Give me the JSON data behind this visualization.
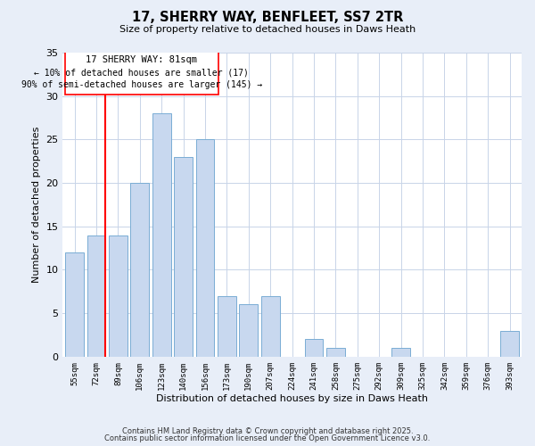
{
  "title": "17, SHERRY WAY, BENFLEET, SS7 2TR",
  "subtitle": "Size of property relative to detached houses in Daws Heath",
  "xlabel": "Distribution of detached houses by size in Daws Heath",
  "ylabel": "Number of detached properties",
  "bar_labels": [
    "55sqm",
    "72sqm",
    "89sqm",
    "106sqm",
    "123sqm",
    "140sqm",
    "156sqm",
    "173sqm",
    "190sqm",
    "207sqm",
    "224sqm",
    "241sqm",
    "258sqm",
    "275sqm",
    "292sqm",
    "309sqm",
    "325sqm",
    "342sqm",
    "359sqm",
    "376sqm",
    "393sqm"
  ],
  "bar_values": [
    12,
    14,
    14,
    20,
    28,
    23,
    25,
    7,
    6,
    7,
    0,
    2,
    1,
    0,
    0,
    1,
    0,
    0,
    0,
    0,
    3
  ],
  "bar_color": "#c8d8ef",
  "bar_edge_color": "#7aadd4",
  "ylim": [
    0,
    35
  ],
  "yticks": [
    0,
    5,
    10,
    15,
    20,
    25,
    30,
    35
  ],
  "ref_line_label": "17 SHERRY WAY: 81sqm",
  "annotation_line1": "← 10% of detached houses are smaller (17)",
  "annotation_line2": "90% of semi-detached houses are larger (145) →",
  "footer_line1": "Contains HM Land Registry data © Crown copyright and database right 2025.",
  "footer_line2": "Contains public sector information licensed under the Open Government Licence v3.0.",
  "bg_color": "#e8eef8",
  "plot_bg_color": "#ffffff",
  "grid_color": "#c8d4e8"
}
